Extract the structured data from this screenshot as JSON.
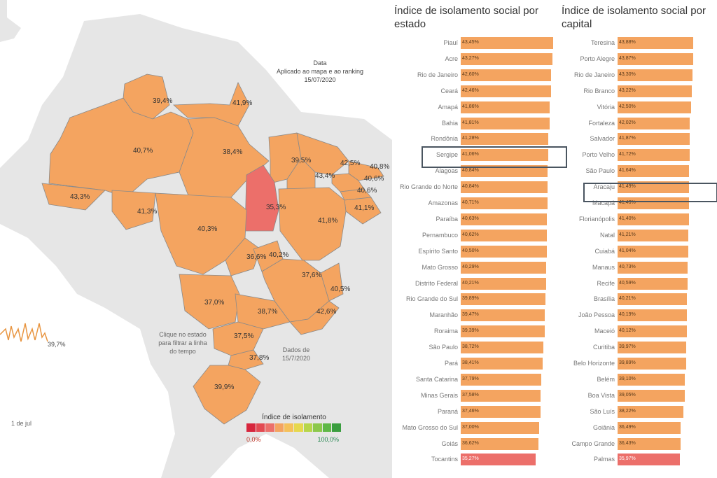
{
  "map": {
    "date_header": "Data",
    "date_caption": "Aplicado ao mapa e ao ranking",
    "date_value": "15/07/2020",
    "click_hint": "Clique no estado para filtrar a linha do tempo",
    "data_date": "Dados de 15/7/2020",
    "legend_title": "Índice de isolamento",
    "legend_min": "0,0%",
    "legend_max": "100,0%",
    "legend_colors": [
      "#d7263d",
      "#e34a52",
      "#ec6f6a",
      "#f4a460",
      "#f5c15a",
      "#e6d84e",
      "#b7d64a",
      "#8cc84b",
      "#5fb847",
      "#3a9e3f"
    ],
    "timeline_value": "39,7%",
    "timeline_axis": "1 de jul",
    "states": [
      {
        "label": "39,4%",
        "value": 39.4,
        "color": "#f4a460"
      },
      {
        "label": "41,9%",
        "value": 41.9,
        "color": "#f4a460"
      },
      {
        "label": "40,7%",
        "value": 40.7,
        "color": "#f4a460"
      },
      {
        "label": "38,4%",
        "value": 38.4,
        "color": "#f4a460"
      },
      {
        "label": "39,5%",
        "value": 39.5,
        "color": "#f4a460"
      },
      {
        "label": "42,5%",
        "value": 42.5,
        "color": "#f4a460"
      },
      {
        "label": "40,8%",
        "value": 40.8,
        "color": "#f4a460"
      },
      {
        "label": "43,4%",
        "value": 43.4,
        "color": "#f4a460"
      },
      {
        "label": "40,6%",
        "value": 40.6,
        "color": "#f4a460"
      },
      {
        "label": "40,6%",
        "value": 40.6,
        "color": "#f4a460"
      },
      {
        "label": "43,3%",
        "value": 43.3,
        "color": "#f4a460"
      },
      {
        "label": "35,3%",
        "value": 35.3,
        "color": "#ec6f6a"
      },
      {
        "label": "41,1%",
        "value": 41.1,
        "color": "#f4a460"
      },
      {
        "label": "41,3%",
        "value": 41.3,
        "color": "#f4a460"
      },
      {
        "label": "40,3%",
        "value": 40.3,
        "color": "#f4a460"
      },
      {
        "label": "41,8%",
        "value": 41.8,
        "color": "#f4a460"
      },
      {
        "label": "36,6%",
        "value": 36.6,
        "color": "#f4a460"
      },
      {
        "label": "40,2%",
        "value": 40.2,
        "color": "#f4a460"
      },
      {
        "label": "37,6%",
        "value": 37.6,
        "color": "#f4a460"
      },
      {
        "label": "40,5%",
        "value": 40.5,
        "color": "#f4a460"
      },
      {
        "label": "37,0%",
        "value": 37.0,
        "color": "#f4a460"
      },
      {
        "label": "38,7%",
        "value": 38.7,
        "color": "#f4a460"
      },
      {
        "label": "42,6%",
        "value": 42.6,
        "color": "#f4a460"
      },
      {
        "label": "37,5%",
        "value": 37.5,
        "color": "#f4a460"
      },
      {
        "label": "37,8%",
        "value": 37.8,
        "color": "#f4a460"
      },
      {
        "label": "39,9%",
        "value": 39.9,
        "color": "#f4a460"
      }
    ]
  },
  "chart_data": [
    {
      "type": "bar",
      "title": "Índice de isolamento social por estado",
      "orientation": "horizontal",
      "highlighted": "Sergipe",
      "categories": [
        "Piauí",
        "Acre",
        "Rio de Janeiro",
        "Ceará",
        "Amapá",
        "Bahia",
        "Rondônia",
        "Sergipe",
        "Alagoas",
        "Rio Grande do Norte",
        "Amazonas",
        "Paraíba",
        "Pernambuco",
        "Espírito Santo",
        "Mato Grosso",
        "Distrito Federal",
        "Rio Grande do Sul",
        "Maranhão",
        "Roraima",
        "São Paulo",
        "Pará",
        "Santa Catarina",
        "Minas Gerais",
        "Paraná",
        "Mato Grosso do Sul",
        "Goiás",
        "Tocantins"
      ],
      "values": [
        43.45,
        43.27,
        42.6,
        42.46,
        41.86,
        41.81,
        41.28,
        41.06,
        40.84,
        40.84,
        40.71,
        40.63,
        40.62,
        40.5,
        40.29,
        40.21,
        39.89,
        39.47,
        39.39,
        38.72,
        38.41,
        37.79,
        37.58,
        37.46,
        37.0,
        36.62,
        35.27
      ],
      "labels": [
        "43,45%",
        "43,27%",
        "42,60%",
        "42,46%",
        "41,86%",
        "41,81%",
        "41,28%",
        "41,06%",
        "40,84%",
        "40,84%",
        "40,71%",
        "40,63%",
        "40,62%",
        "40,50%",
        "40,29%",
        "40,21%",
        "39,89%",
        "39,47%",
        "39,39%",
        "38,72%",
        "38,41%",
        "37,79%",
        "37,58%",
        "37,46%",
        "37,00%",
        "36,62%",
        "35,27%"
      ]
    },
    {
      "type": "bar",
      "title": "Índice de isolamento social por capital",
      "orientation": "horizontal",
      "highlighted": "Aracaju",
      "categories": [
        "Teresina",
        "Porto Alegre",
        "Rio de Janeiro",
        "Rio Branco",
        "Vitória",
        "Fortaleza",
        "Salvador",
        "Porto Velho",
        "São Paulo",
        "Aracaju",
        "Macapá",
        "Florianópolis",
        "Natal",
        "Cuiabá",
        "Manaus",
        "Recife",
        "Brasília",
        "João Pessoa",
        "Maceió",
        "Curitiba",
        "Belo Horizonte",
        "Belém",
        "Boa Vista",
        "São Luís",
        "Goiânia",
        "Campo Grande",
        "Palmas"
      ],
      "values": [
        43.88,
        43.87,
        43.3,
        43.22,
        42.5,
        42.02,
        41.87,
        41.72,
        41.64,
        41.49,
        41.43,
        41.4,
        41.21,
        41.04,
        40.73,
        40.59,
        40.21,
        40.19,
        40.12,
        39.97,
        39.89,
        39.1,
        39.05,
        38.22,
        36.49,
        36.43,
        35.97
      ],
      "labels": [
        "43,88%",
        "43,87%",
        "43,30%",
        "43,22%",
        "42,50%",
        "42,02%",
        "41,87%",
        "41,72%",
        "41,64%",
        "41,49%",
        "41,43%",
        "41,40%",
        "41,21%",
        "41,04%",
        "40,73%",
        "40,59%",
        "40,21%",
        "40,19%",
        "40,12%",
        "39,97%",
        "39,89%",
        "39,10%",
        "39,05%",
        "38,22%",
        "36,49%",
        "36,43%",
        "35,97%"
      ]
    }
  ]
}
